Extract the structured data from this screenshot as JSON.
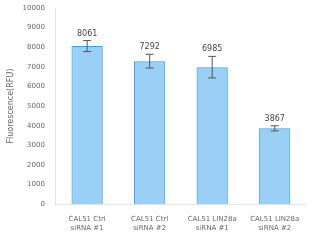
{
  "chart_data": {
    "type": "bar",
    "categories": [
      "CAL51 Ctrl\nsiRNA #1",
      "CAL51 Ctrl\nsiRNA #2",
      "CAL51 LIN28a\nsiRNA #1",
      "CAL51 LIN28a\nsiRNA #2"
    ],
    "values": [
      8061,
      7292,
      6985,
      3867
    ],
    "errors": [
      280,
      350,
      550,
      130
    ],
    "ylabel": "Fluorescence(RFU)",
    "ylim": [
      0,
      10000
    ],
    "yticks": [
      0,
      1000,
      2000,
      3000,
      4000,
      5000,
      6000,
      7000,
      8000,
      9000,
      10000
    ],
    "grid": false,
    "data_labels": true
  }
}
